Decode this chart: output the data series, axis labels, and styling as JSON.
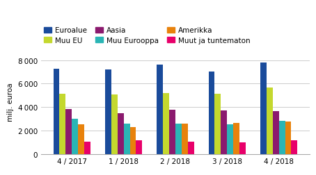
{
  "categories": [
    "4 / 2017",
    "1 / 2018",
    "2 / 2018",
    "3 / 2018",
    "4 / 2018"
  ],
  "series": {
    "Euroalue": [
      7300,
      7200,
      7650,
      7050,
      7800
    ],
    "Muu EU": [
      5150,
      5050,
      5200,
      5150,
      5700
    ],
    "Aasia": [
      3850,
      3500,
      3750,
      3700,
      3650
    ],
    "Muu Eurooppa": [
      3000,
      2600,
      2600,
      2550,
      2850
    ],
    "Amerikka": [
      2500,
      2300,
      2600,
      2650,
      2750
    ],
    "Muut ja tuntematon": [
      1050,
      1150,
      1050,
      1000,
      1150
    ]
  },
  "colors": {
    "Euroalue": "#1a4b9b",
    "Muu EU": "#c4d82e",
    "Aasia": "#8b1a6e",
    "Muu Eurooppa": "#2ab5b5",
    "Amerikka": "#e8820c",
    "Muut ja tuntematon": "#e8006a"
  },
  "ylabel": "milj. euroa",
  "ylim": [
    0,
    9000
  ],
  "yticks": [
    0,
    2000,
    4000,
    6000,
    8000
  ],
  "legend_order": [
    "Euroalue",
    "Muu EU",
    "Aasia",
    "Muu Eurooppa",
    "Amerikka",
    "Muut ja tuntematon"
  ],
  "background_color": "#ffffff",
  "grid_color": "#cccccc"
}
